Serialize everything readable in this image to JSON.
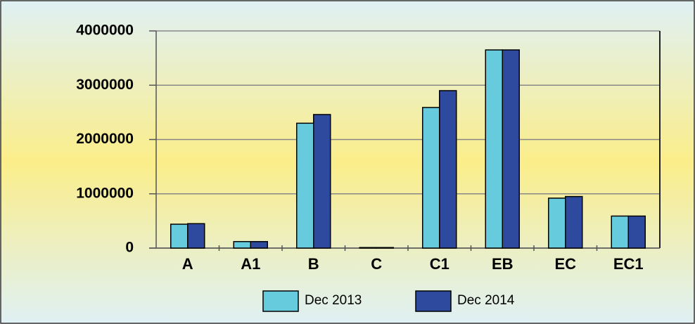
{
  "chart_data": {
    "type": "bar",
    "categories": [
      "A",
      "A1",
      "B",
      "C",
      "C1",
      "EB",
      "EC",
      "EC1"
    ],
    "series": [
      {
        "name": "Dec 2013",
        "color": "#66ccdd",
        "values": [
          440000,
          120000,
          2300000,
          10000,
          2590000,
          3650000,
          920000,
          590000
        ]
      },
      {
        "name": "Dec 2014",
        "color": "#2e4a9e",
        "values": [
          450000,
          120000,
          2460000,
          10000,
          2900000,
          3650000,
          950000,
          590000
        ]
      }
    ],
    "ylim": [
      0,
      4000000
    ],
    "yticks": [
      0,
      1000000,
      2000000,
      3000000,
      4000000
    ],
    "grid": true
  }
}
